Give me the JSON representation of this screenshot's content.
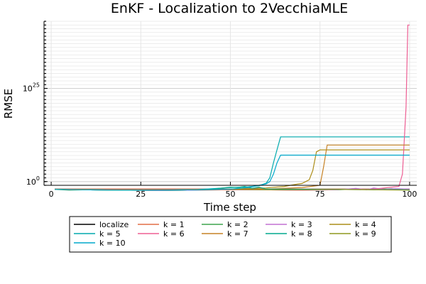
{
  "chart_data": {
    "type": "line",
    "title": "EnKF - Localization to 2VecchiaMLE",
    "xlabel": "Time step",
    "ylabel": "RMSE",
    "xlim": [
      -2,
      102
    ],
    "yscale": "log10",
    "ylim_log10": [
      -1,
      43
    ],
    "xticks": [
      0,
      25,
      50,
      75,
      100
    ],
    "yticks": [
      {
        "value_log10": 0,
        "label_base": "10",
        "label_exp": "0"
      },
      {
        "value_log10": 25,
        "label_base": "10",
        "label_exp": "25"
      }
    ],
    "grid": true,
    "legend_position": "below",
    "series": [
      {
        "name": "localize",
        "color": "#000000",
        "x": [
          1,
          10,
          20,
          30,
          40,
          50,
          60,
          70,
          80,
          90,
          100
        ],
        "y_log10": [
          -2,
          -2,
          -2,
          -2,
          -2,
          -2,
          -2,
          -2,
          -2,
          -2,
          -2
        ]
      },
      {
        "name": "k = 1",
        "color": "#e26f46",
        "x": [
          1,
          10,
          20,
          30,
          40,
          50,
          60,
          70,
          80,
          90,
          100
        ],
        "y_log10": [
          -2,
          -2,
          -2,
          -2,
          -2,
          -2,
          -2,
          -2,
          -2,
          -2,
          -2
        ]
      },
      {
        "name": "k = 2",
        "color": "#3da44d",
        "x": [
          1,
          5,
          10,
          20,
          30,
          40,
          50,
          60,
          70,
          80,
          85,
          90,
          95,
          100
        ],
        "y_log10": [
          -2.1,
          -2.3,
          -2.2,
          -2.3,
          -2.4,
          -2.3,
          -2.2,
          -2.2,
          -2.3,
          -2.2,
          -2.0,
          -2.2,
          -1.9,
          -2.3
        ]
      },
      {
        "name": "k = 3",
        "color": "#c271d2",
        "x": [
          1,
          10,
          20,
          30,
          40,
          50,
          60,
          70,
          80,
          85,
          88,
          90,
          93,
          96,
          100
        ],
        "y_log10": [
          -2.1,
          -2.2,
          -2.3,
          -2.4,
          -2.3,
          -2.2,
          -2.2,
          -2.3,
          -2.2,
          -1.8,
          -2.2,
          -1.7,
          -2.1,
          -1.9,
          -2.0
        ]
      },
      {
        "name": "k = 4",
        "color": "#ac8d18",
        "x": [
          1,
          10,
          20,
          30,
          40,
          50,
          55,
          60,
          65,
          68,
          70,
          72,
          73,
          74,
          75,
          100
        ],
        "y_log10": [
          -2.1,
          -2.2,
          -2.3,
          -2.3,
          -2.2,
          -2.0,
          -1.8,
          -1.7,
          -1.3,
          -0.8,
          -0.5,
          0.5,
          3.0,
          8.0,
          8.5,
          8.5
        ]
      },
      {
        "name": "k = 5",
        "color": "#00a9ad",
        "x": [
          1,
          10,
          20,
          30,
          40,
          45,
          50,
          55,
          58,
          60,
          61,
          62,
          63,
          64,
          100
        ],
        "y_log10": [
          -2.1,
          -2.2,
          -2.3,
          -2.3,
          -2.2,
          -1.9,
          -1.6,
          -1.4,
          -1.1,
          -0.4,
          1.0,
          5.0,
          8.5,
          12.0,
          12.0
        ]
      },
      {
        "name": "k = 6",
        "color": "#ed5e93",
        "x": [
          1,
          10,
          20,
          30,
          40,
          50,
          60,
          70,
          80,
          90,
          95,
          97,
          98,
          99,
          99.5,
          100
        ],
        "y_log10": [
          -2.1,
          -2.2,
          -2.3,
          -2.3,
          -2.2,
          -2.2,
          -2.2,
          -2.3,
          -2.1,
          -2.0,
          -1.5,
          -1.3,
          2.0,
          20.0,
          42.0,
          42.0
        ]
      },
      {
        "name": "k = 7",
        "color": "#c68225",
        "x": [
          1,
          10,
          20,
          30,
          40,
          50,
          60,
          70,
          75,
          76,
          77,
          100
        ],
        "y_log10": [
          -2.1,
          -2.2,
          -2.3,
          -2.3,
          -2.2,
          -2.1,
          -2.0,
          -1.6,
          -1.0,
          4.0,
          9.8,
          9.8
        ]
      },
      {
        "name": "k = 8",
        "color": "#00a98d",
        "x": [
          1,
          10,
          20,
          30,
          40,
          45,
          48,
          50,
          52,
          54,
          56,
          58,
          60,
          100
        ],
        "y_log10": [
          -2.1,
          -2.2,
          -2.3,
          -2.3,
          -2.2,
          -2.0,
          -1.7,
          -1.5,
          -1.6,
          -1.3,
          -1.8,
          -1.5,
          -2.0,
          -2.2
        ]
      },
      {
        "name": "k = 9",
        "color": "#8e971e",
        "x": [
          1,
          10,
          20,
          30,
          40,
          50,
          60,
          70,
          80,
          90,
          100
        ],
        "y_log10": [
          -2.1,
          -2.2,
          -2.3,
          -2.3,
          -2.2,
          -2.1,
          -2.2,
          -2.2,
          -2.1,
          -2.2,
          -2.3
        ]
      },
      {
        "name": "k = 10",
        "color": "#00a8cb",
        "x": [
          1,
          10,
          20,
          30,
          40,
          50,
          55,
          58,
          60,
          61,
          62,
          63,
          64,
          100
        ],
        "y_log10": [
          -2.1,
          -2.2,
          -2.3,
          -2.3,
          -2.2,
          -2.0,
          -1.6,
          -1.0,
          -0.6,
          0.0,
          2.0,
          5.0,
          7.1,
          7.1
        ]
      }
    ]
  }
}
